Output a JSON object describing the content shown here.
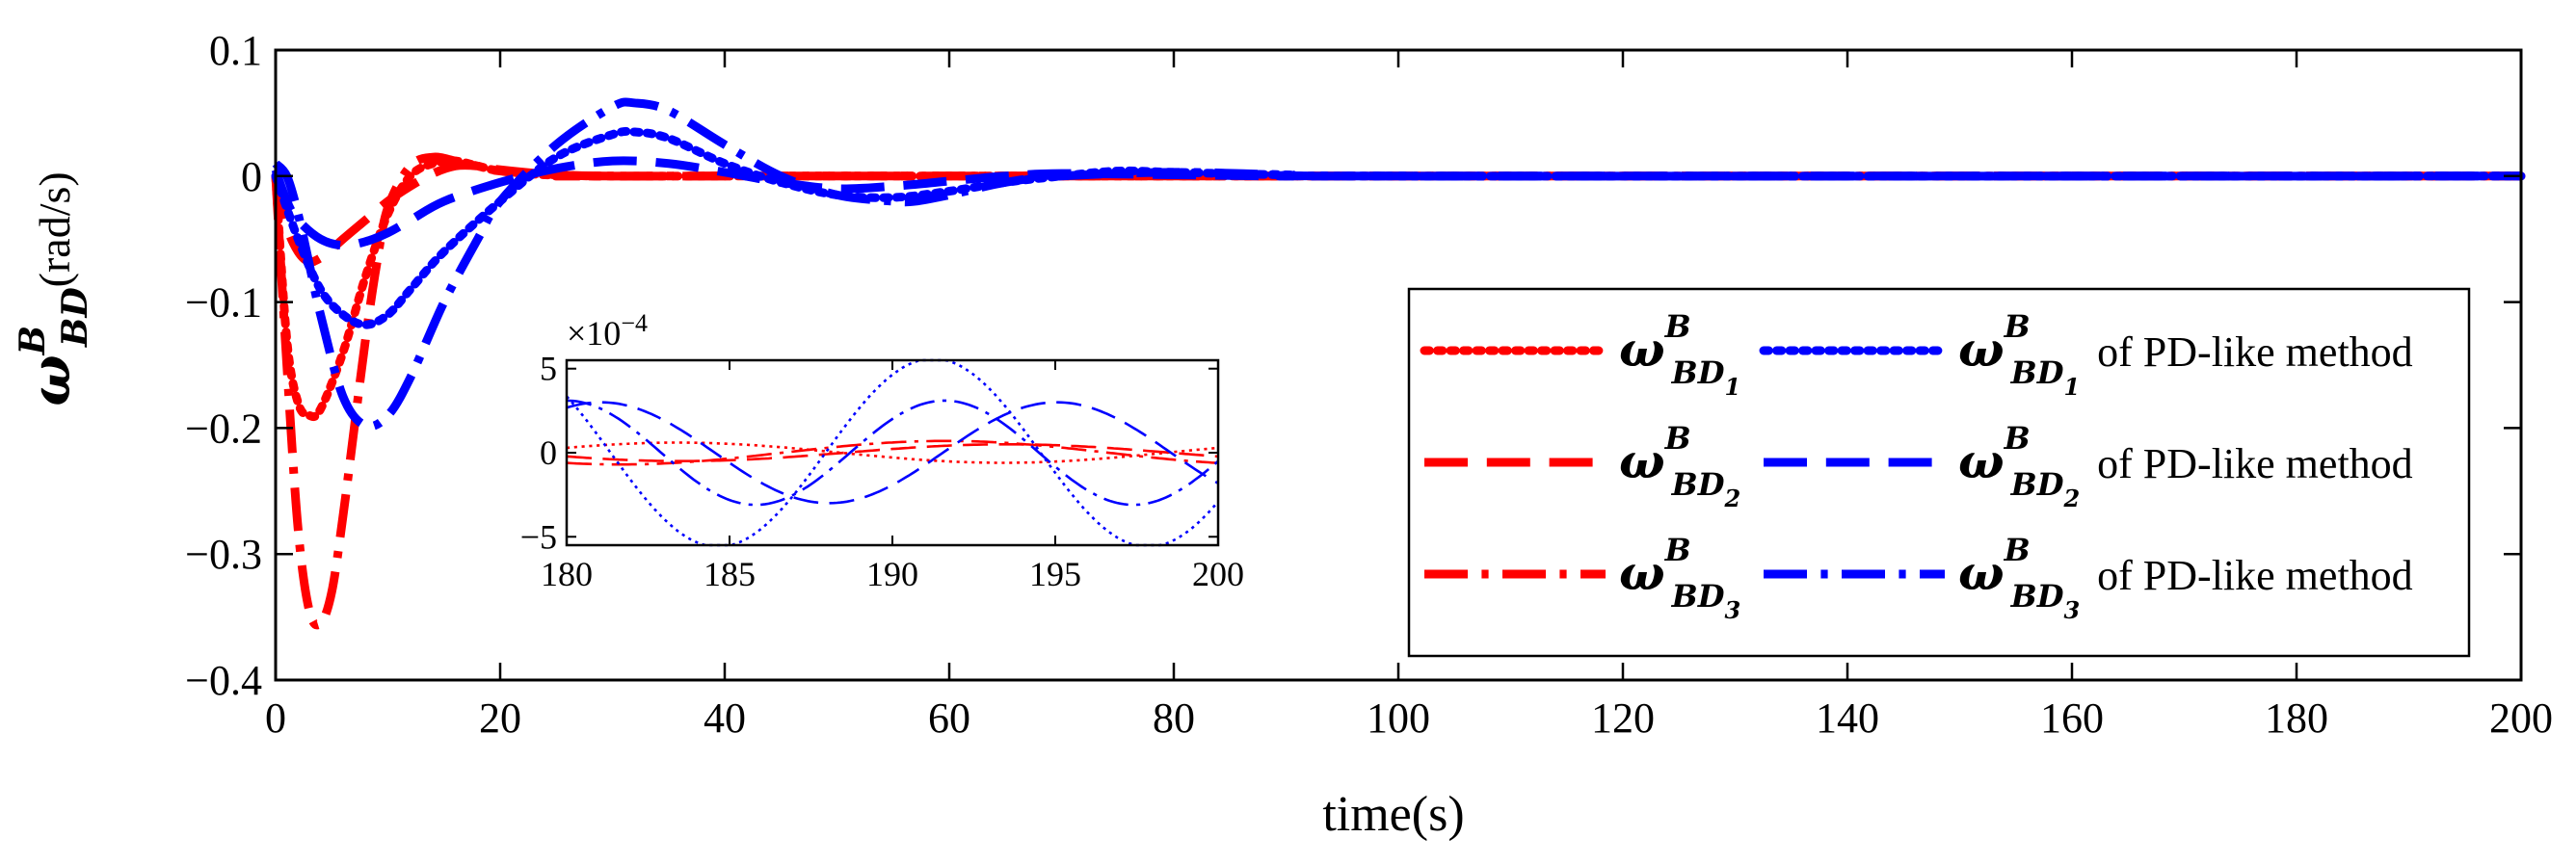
{
  "chart_data": {
    "type": "line",
    "title": "",
    "xlabel": "time(s)",
    "ylabel": {
      "symbol": "ω",
      "superscript": "B",
      "subscript": "BD",
      "unit": "(rad/s)"
    },
    "xlim": [
      0,
      200
    ],
    "ylim": [
      -0.4,
      0.1
    ],
    "xticks": [
      0,
      20,
      40,
      60,
      80,
      100,
      120,
      140,
      160,
      180,
      200
    ],
    "xtick_labels": [
      "0",
      "20",
      "40",
      "60",
      "80",
      "100",
      "120",
      "140",
      "160",
      "180",
      "200"
    ],
    "yticks": [
      -0.4,
      -0.3,
      -0.2,
      -0.1,
      0,
      0.1
    ],
    "ytick_labels": [
      "−0.4",
      "−0.3",
      "−0.2",
      "−0.1",
      "0",
      "0.1"
    ],
    "colors": {
      "proposed": "#ff0000",
      "pd": "#0000ff"
    },
    "series": [
      {
        "name": "ω_BD1",
        "method": "proposed",
        "style": "dotted",
        "color": "#ff0000",
        "x": [
          0,
          1,
          2,
          3,
          4,
          6,
          8,
          10,
          12,
          14,
          16,
          18,
          20,
          24,
          30,
          40,
          60,
          80,
          200
        ],
        "y": [
          0,
          -0.13,
          -0.18,
          -0.19,
          -0.185,
          -0.14,
          -0.08,
          -0.03,
          0.0,
          0.01,
          0.012,
          0.008,
          0.004,
          0.001,
          0,
          0,
          0,
          0,
          0
        ]
      },
      {
        "name": "ω_BD2",
        "method": "proposed",
        "style": "dashed",
        "color": "#ff0000",
        "x": [
          0,
          1,
          2,
          3,
          4,
          5,
          6,
          8,
          10,
          12,
          14,
          16,
          18,
          20,
          25,
          30,
          40,
          60,
          200
        ],
        "y": [
          0,
          -0.04,
          -0.06,
          -0.068,
          -0.065,
          -0.058,
          -0.05,
          -0.035,
          -0.02,
          -0.008,
          0.002,
          0.008,
          0.008,
          0.005,
          0.001,
          0,
          0,
          0,
          0
        ]
      },
      {
        "name": "ω_BD3",
        "method": "proposed",
        "style": "dashdot",
        "color": "#ff0000",
        "x": [
          0,
          1,
          2,
          3,
          4,
          5,
          6,
          7,
          8,
          9,
          10,
          12,
          14,
          16,
          18,
          20,
          25,
          30,
          40,
          200
        ],
        "y": [
          0,
          -0.15,
          -0.28,
          -0.345,
          -0.355,
          -0.33,
          -0.27,
          -0.2,
          -0.13,
          -0.07,
          -0.025,
          0.008,
          0.015,
          0.012,
          0.008,
          0.004,
          0.001,
          0,
          0,
          0
        ]
      },
      {
        "name": "ω_BD1 of PD-like method",
        "method": "pd",
        "style": "dotted",
        "color": "#0000ff",
        "x": [
          0,
          2,
          4,
          6,
          8,
          10,
          12,
          15,
          20,
          25,
          30,
          32,
          35,
          40,
          45,
          50,
          55,
          60,
          65,
          70,
          75,
          80,
          90,
          100,
          200
        ],
        "y": [
          0,
          -0.05,
          -0.09,
          -0.11,
          -0.118,
          -0.11,
          -0.09,
          -0.06,
          -0.02,
          0.015,
          0.033,
          0.035,
          0.03,
          0.01,
          -0.005,
          -0.015,
          -0.017,
          -0.012,
          -0.005,
          0.0,
          0.004,
          0.003,
          0.001,
          0,
          0
        ]
      },
      {
        "name": "ω_BD2 of PD-like method",
        "method": "pd",
        "style": "dashed",
        "color": "#0000ff",
        "x": [
          0,
          1,
          2,
          4,
          6,
          8,
          10,
          12,
          15,
          20,
          25,
          30,
          35,
          40,
          45,
          50,
          55,
          60,
          65,
          70,
          80,
          90,
          100,
          200
        ],
        "y": [
          0.005,
          -0.02,
          -0.035,
          -0.05,
          -0.055,
          -0.052,
          -0.045,
          -0.035,
          -0.02,
          -0.005,
          0.006,
          0.012,
          0.01,
          0.003,
          -0.005,
          -0.01,
          -0.008,
          -0.004,
          0.0,
          0.002,
          0.001,
          0,
          0,
          0
        ]
      },
      {
        "name": "ω_BD3 of PD-like method",
        "method": "pd",
        "style": "dashdot",
        "color": "#0000ff",
        "x": [
          0,
          1,
          2,
          3,
          4,
          6,
          8,
          10,
          12,
          15,
          18,
          20,
          25,
          30,
          32,
          35,
          40,
          45,
          50,
          55,
          57,
          60,
          65,
          70,
          80,
          90,
          100,
          200
        ],
        "y": [
          0.01,
          0.0,
          -0.03,
          -0.07,
          -0.11,
          -0.175,
          -0.198,
          -0.19,
          -0.16,
          -0.1,
          -0.05,
          -0.02,
          0.025,
          0.055,
          0.058,
          0.052,
          0.025,
          0.0,
          -0.015,
          -0.02,
          -0.02,
          -0.015,
          -0.005,
          0.0,
          0.003,
          0.001,
          0,
          0
        ]
      }
    ],
    "inset": {
      "xlim": [
        180,
        200
      ],
      "ylim": [
        -5.5,
        5.5
      ],
      "xticks": [
        180,
        185,
        190,
        195,
        200
      ],
      "xtick_labels": [
        "180",
        "185",
        "190",
        "195",
        "200"
      ],
      "yticks": [
        -5,
        0,
        5
      ],
      "ytick_labels": [
        "−5",
        "0",
        "5"
      ],
      "exponent_label": "×10",
      "exponent": "−4",
      "series": [
        {
          "name": "ω_BD1",
          "style": "dotted",
          "color": "#ff0000",
          "amp": 0.6,
          "period": 20,
          "phase": 0.5
        },
        {
          "name": "ω_BD2",
          "style": "dashed",
          "color": "#ff0000",
          "amp": 0.5,
          "period": 20,
          "phase": 3.6
        },
        {
          "name": "ω_BD3",
          "style": "dashdot",
          "color": "#ff0000",
          "amp": 0.7,
          "period": 20,
          "phase": 4.2
        },
        {
          "name": "ω_BD1 of PD-like method",
          "style": "dotted",
          "color": "#0000ff",
          "amp": 5.6,
          "period": 13.2,
          "phase": 2.5
        },
        {
          "name": "ω_BD2 of PD-like method",
          "style": "dashed",
          "color": "#0000ff",
          "amp": 3.0,
          "period": 14,
          "phase": 1.1
        },
        {
          "name": "ω_BD3 of PD-like method",
          "style": "dashdot",
          "color": "#0000ff",
          "amp": 3.1,
          "period": 11.6,
          "phase": 1.57
        }
      ]
    },
    "legend": {
      "placement": "lower-right",
      "entries": [
        {
          "symbol": "ω",
          "sup": "B",
          "sub": "BD",
          "index": "1",
          "suffix": "",
          "style": "dotted",
          "color": "#ff0000"
        },
        {
          "symbol": "ω",
          "sup": "B",
          "sub": "BD",
          "index": "1",
          "suffix": "of PD-like method",
          "style": "dotted",
          "color": "#0000ff"
        },
        {
          "symbol": "ω",
          "sup": "B",
          "sub": "BD",
          "index": "2",
          "suffix": "",
          "style": "dashed",
          "color": "#ff0000"
        },
        {
          "symbol": "ω",
          "sup": "B",
          "sub": "BD",
          "index": "2",
          "suffix": "of PD-like method",
          "style": "dashed",
          "color": "#0000ff"
        },
        {
          "symbol": "ω",
          "sup": "B",
          "sub": "BD",
          "index": "3",
          "suffix": "",
          "style": "dashdot",
          "color": "#ff0000"
        },
        {
          "symbol": "ω",
          "sup": "B",
          "sub": "BD",
          "index": "3",
          "suffix": "of PD-like method",
          "style": "dashdot",
          "color": "#0000ff"
        }
      ]
    }
  }
}
